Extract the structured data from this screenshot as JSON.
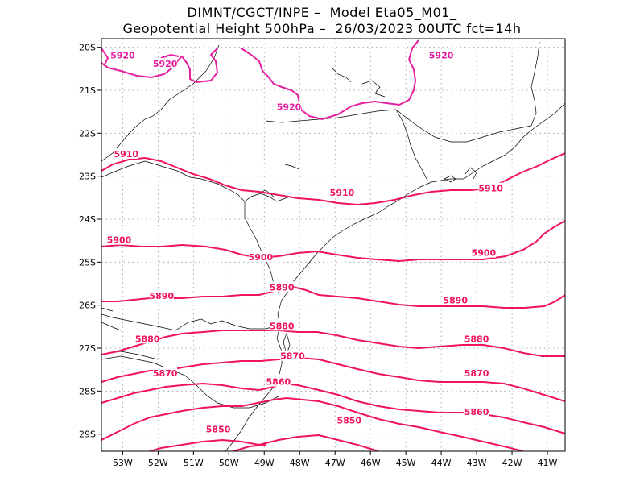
{
  "title": {
    "line1": "DIMNT/CGCT/INPE –  Model Eta05_M01_",
    "line2": "Geopotential Height 500hPa –  26/03/2023 00UTC fct=14h"
  },
  "colors": {
    "contour_red": "#f0145a",
    "contour_magenta": "#e61ea0",
    "coast": "#000000",
    "grid": "#999999"
  },
  "axes": {
    "x_ticks": [
      "53W",
      "52W",
      "51W",
      "50W",
      "49W",
      "48W",
      "47W",
      "46W",
      "45W",
      "44W",
      "43W",
      "42W",
      "41W"
    ],
    "y_ticks": [
      "20S",
      "21S",
      "22S",
      "23S",
      "24S",
      "25S",
      "26S",
      "27S",
      "28S",
      "29S"
    ],
    "lon_range": [
      -53.6,
      -40.5
    ],
    "lat_range": [
      -29.4,
      -19.8
    ]
  },
  "chart_data": {
    "type": "contour-map",
    "variable": "Geopotential Height 500hPa",
    "levels": [
      5850,
      5860,
      5870,
      5880,
      5890,
      5900,
      5910,
      5920
    ],
    "labels": [
      {
        "text": "5920",
        "lon": -53.0,
        "lat": -20.2
      },
      {
        "text": "5920",
        "lon": -51.8,
        "lat": -20.4
      },
      {
        "text": "5920",
        "lon": -48.3,
        "lat": -21.4
      },
      {
        "text": "5920",
        "lon": -44.0,
        "lat": -20.2
      },
      {
        "text": "5910",
        "lon": -52.9,
        "lat": -22.5
      },
      {
        "text": "5910",
        "lon": -46.8,
        "lat": -23.4
      },
      {
        "text": "5910",
        "lon": -42.6,
        "lat": -23.3
      },
      {
        "text": "5900",
        "lon": -53.1,
        "lat": -24.5
      },
      {
        "text": "5900",
        "lon": -49.1,
        "lat": -24.9
      },
      {
        "text": "5900",
        "lon": -42.8,
        "lat": -24.8
      },
      {
        "text": "5890",
        "lon": -51.9,
        "lat": -25.8
      },
      {
        "text": "5890",
        "lon": -48.5,
        "lat": -25.6
      },
      {
        "text": "5890",
        "lon": -43.6,
        "lat": -25.9
      },
      {
        "text": "5880",
        "lon": -52.3,
        "lat": -26.8
      },
      {
        "text": "5880",
        "lon": -48.5,
        "lat": -26.5
      },
      {
        "text": "5880",
        "lon": -43.0,
        "lat": -26.8
      },
      {
        "text": "5870",
        "lon": -51.8,
        "lat": -27.6
      },
      {
        "text": "5870",
        "lon": -48.2,
        "lat": -27.2
      },
      {
        "text": "5870",
        "lon": -43.0,
        "lat": -27.6
      },
      {
        "text": "5860",
        "lon": -48.6,
        "lat": -27.8
      },
      {
        "text": "5860",
        "lon": -43.0,
        "lat": -28.5
      },
      {
        "text": "5850",
        "lon": -50.3,
        "lat": -28.9
      },
      {
        "text": "5850",
        "lon": -46.6,
        "lat": -28.7
      }
    ]
  }
}
